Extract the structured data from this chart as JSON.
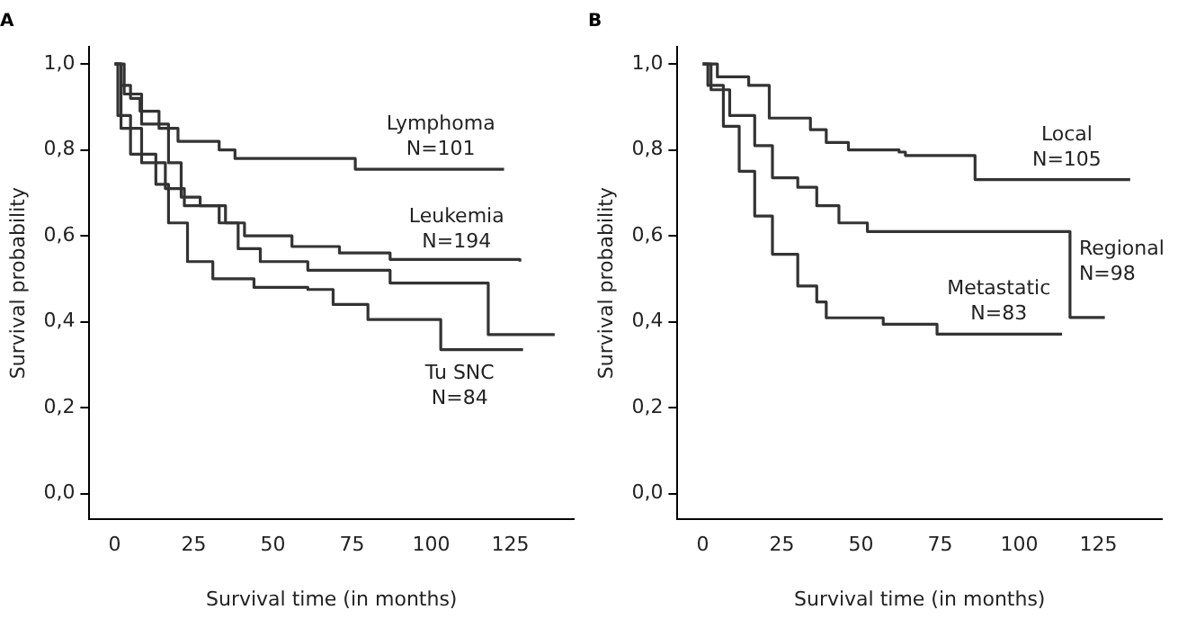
{
  "chart_data": [
    {
      "type": "step",
      "title": "A",
      "xlabel": "Survival time (in months)",
      "ylabel": "Survival probability",
      "xlim": [
        -8,
        145
      ],
      "xticks": [
        0,
        25,
        50,
        75,
        100,
        125
      ],
      "ylim": [
        -0.06,
        1.04
      ],
      "yticks": [
        {
          "value": 0,
          "label": "0,0"
        },
        {
          "value": 0.2,
          "label": "0,2"
        },
        {
          "value": 0.4,
          "label": "0,4"
        },
        {
          "value": 0.6,
          "label": "0,6"
        },
        {
          "value": 0.8,
          "label": "0,8"
        },
        {
          "value": 1,
          "label": "1,0"
        }
      ],
      "grid": false,
      "legend": false,
      "series": [
        {
          "name": "Lymphoma\nN=101",
          "color": "#333333",
          "x": [
            0,
            2,
            5,
            8,
            14,
            20,
            33,
            38,
            76,
            123
          ],
          "values": [
            1,
            0.95,
            0.92,
            0.89,
            0.85,
            0.82,
            0.8,
            0.78,
            0.755,
            0.755
          ]
        },
        {
          "name": "Leukemia\nN=194",
          "color": "#333333",
          "x": [
            0,
            3,
            8.5,
            17,
            21,
            27,
            35,
            41,
            56,
            71,
            87,
            128
          ],
          "values": [
            1,
            0.93,
            0.86,
            0.77,
            0.69,
            0.67,
            0.63,
            0.6,
            0.575,
            0.56,
            0.545,
            0.54
          ]
        },
        {
          "color": "#333333",
          "x": [
            0,
            2,
            8.5,
            16,
            22,
            33,
            39,
            46,
            61,
            87,
            118,
            139
          ],
          "values": [
            1,
            0.85,
            0.77,
            0.71,
            0.67,
            0.63,
            0.57,
            0.54,
            0.52,
            0.49,
            0.37,
            0.37
          ]
        },
        {
          "name": "Tu SNC\nN=84",
          "color": "#333333",
          "x": [
            0,
            1,
            5,
            13,
            17,
            23,
            31,
            44,
            61,
            69,
            80,
            103,
            129
          ],
          "values": [
            1,
            0.88,
            0.79,
            0.72,
            0.63,
            0.54,
            0.5,
            0.48,
            0.475,
            0.44,
            0.405,
            0.335,
            0.335
          ]
        }
      ]
    },
    {
      "type": "step",
      "title": "B",
      "xlabel": "Survival time (in months)",
      "ylabel": "Survival probability",
      "xlim": [
        -8,
        145
      ],
      "xticks": [
        0,
        25,
        50,
        75,
        100,
        125
      ],
      "ylim": [
        -0.06,
        1.04
      ],
      "yticks": [
        {
          "value": 0,
          "label": "0,0"
        },
        {
          "value": 0.2,
          "label": "0,2"
        },
        {
          "value": 0.4,
          "label": "0,4"
        },
        {
          "value": 0.6,
          "label": "0,6"
        },
        {
          "value": 0.8,
          "label": "0,8"
        },
        {
          "value": 1,
          "label": "1,0"
        }
      ],
      "grid": false,
      "legend": false,
      "series": [
        {
          "name": "Local\nN=105",
          "color": "#333333",
          "x": [
            0,
            4.6,
            14.5,
            21,
            34,
            39,
            46,
            62,
            64,
            86,
            135
          ],
          "values": [
            1,
            0.97,
            0.95,
            0.874,
            0.847,
            0.817,
            0.8,
            0.795,
            0.787,
            0.731,
            0.731
          ]
        },
        {
          "name": "Regional\nN=98",
          "color": "#333333",
          "x": [
            0,
            2.6,
            8.5,
            16.4,
            22,
            30,
            36,
            43,
            52,
            116,
            127
          ],
          "values": [
            1,
            0.94,
            0.88,
            0.81,
            0.735,
            0.713,
            0.67,
            0.63,
            0.61,
            0.41,
            0.41
          ]
        },
        {
          "name": "Metastatic\nN=83",
          "color": "#333333",
          "x": [
            0,
            1.6,
            6.5,
            11.5,
            16.4,
            22,
            30,
            36,
            39,
            57,
            74,
            113.5
          ],
          "values": [
            1,
            0.95,
            0.855,
            0.75,
            0.646,
            0.557,
            0.483,
            0.446,
            0.409,
            0.394,
            0.371,
            0.371
          ]
        }
      ]
    }
  ]
}
